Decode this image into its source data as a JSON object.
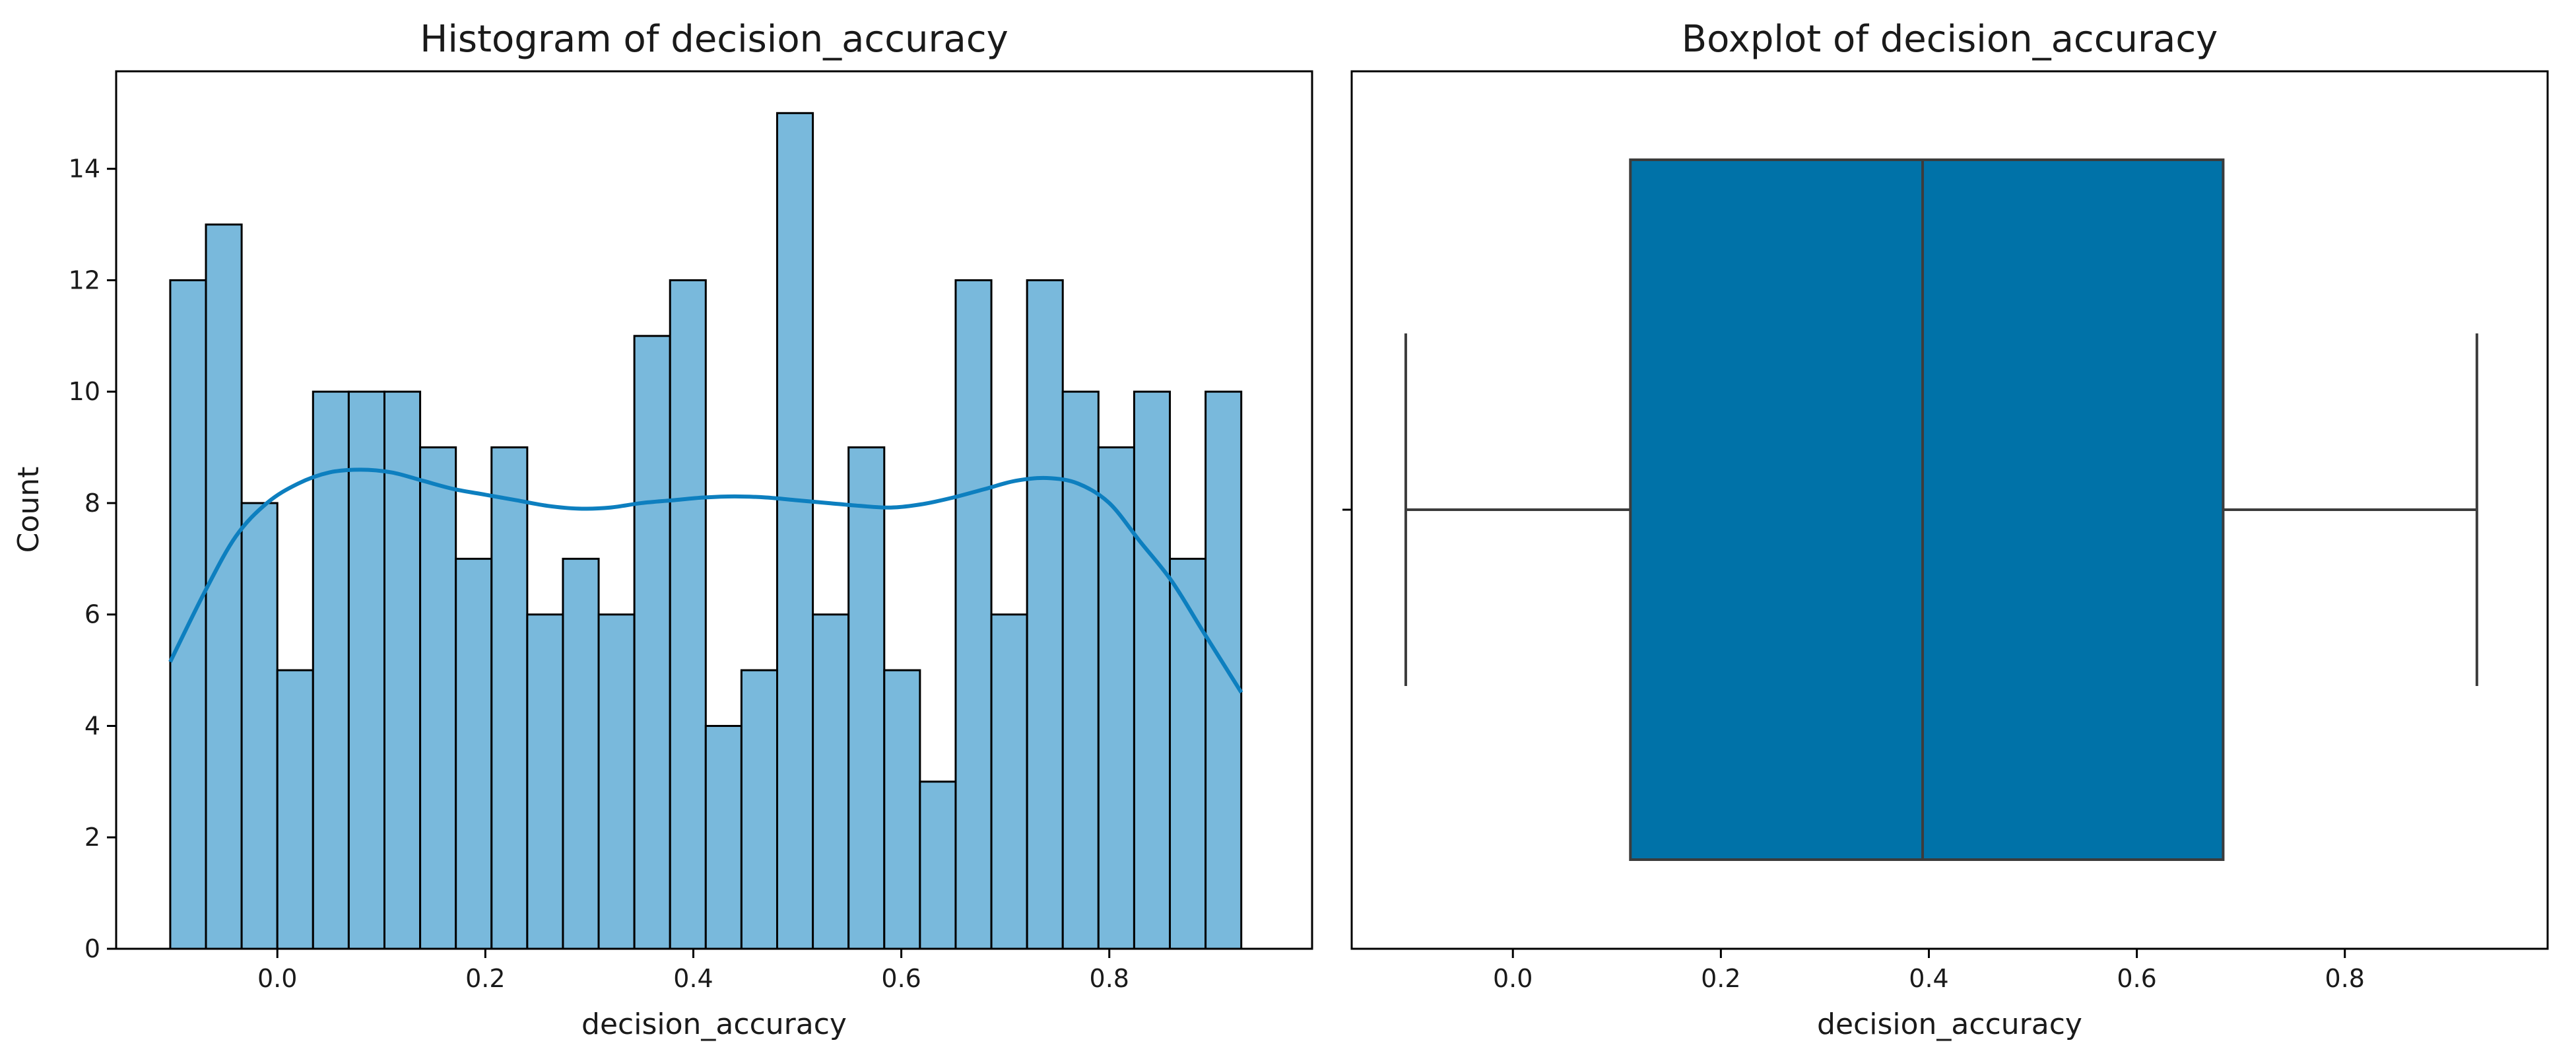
{
  "chart_data": [
    {
      "type": "histogram",
      "title": "Histogram of decision_accuracy",
      "xlabel": "decision_accuracy",
      "ylabel": "Count",
      "xlim": [
        -0.155,
        0.995
      ],
      "ylim": [
        0,
        15.75
      ],
      "xticks": [
        0.0,
        0.2,
        0.4,
        0.6,
        0.8
      ],
      "xtick_labels": [
        "0.0",
        "0.2",
        "0.4",
        "0.6",
        "0.8"
      ],
      "yticks": [
        0,
        2,
        4,
        6,
        8,
        10,
        12,
        14
      ],
      "ytick_labels": [
        "0",
        "2",
        "4",
        "6",
        "8",
        "10",
        "12",
        "14"
      ],
      "bin_start": -0.103,
      "bin_width": 0.03433,
      "counts": [
        12,
        13,
        8,
        5,
        10,
        10,
        10,
        9,
        7,
        9,
        6,
        7,
        6,
        11,
        12,
        4,
        5,
        15,
        6,
        9,
        5,
        3,
        12,
        6,
        12,
        10,
        9,
        10,
        7,
        10
      ],
      "bar_color": "#79b9dc",
      "edge_color": "#000000",
      "kde": {
        "color": "#0d7fbf",
        "x": [
          -0.103,
          -0.07,
          -0.04,
          -0.01,
          0.02,
          0.05,
          0.08,
          0.11,
          0.14,
          0.17,
          0.2,
          0.23,
          0.26,
          0.29,
          0.32,
          0.35,
          0.38,
          0.41,
          0.44,
          0.47,
          0.5,
          0.53,
          0.56,
          0.59,
          0.62,
          0.65,
          0.68,
          0.71,
          0.74,
          0.77,
          0.8,
          0.83,
          0.86,
          0.89,
          0.927
        ],
        "y": [
          5.15,
          6.4,
          7.4,
          8.0,
          8.35,
          8.55,
          8.6,
          8.55,
          8.4,
          8.25,
          8.15,
          8.05,
          7.95,
          7.9,
          7.92,
          8.0,
          8.05,
          8.1,
          8.12,
          8.1,
          8.05,
          8.0,
          7.95,
          7.92,
          7.98,
          8.1,
          8.25,
          8.4,
          8.45,
          8.35,
          8.0,
          7.3,
          6.6,
          5.7,
          4.6
        ]
      }
    },
    {
      "type": "boxplot",
      "title": "Boxplot of decision_accuracy",
      "xlabel": "decision_accuracy",
      "xlim": [
        -0.155,
        0.995
      ],
      "xticks": [
        0.0,
        0.2,
        0.4,
        0.6,
        0.8
      ],
      "xtick_labels": [
        "0.0",
        "0.2",
        "0.4",
        "0.6",
        "0.8"
      ],
      "whisker_low": -0.103,
      "q1": 0.113,
      "median": 0.394,
      "q3": 0.683,
      "whisker_high": 0.927,
      "box_color": "#0072a8",
      "line_color": "#3c3c3c"
    }
  ]
}
